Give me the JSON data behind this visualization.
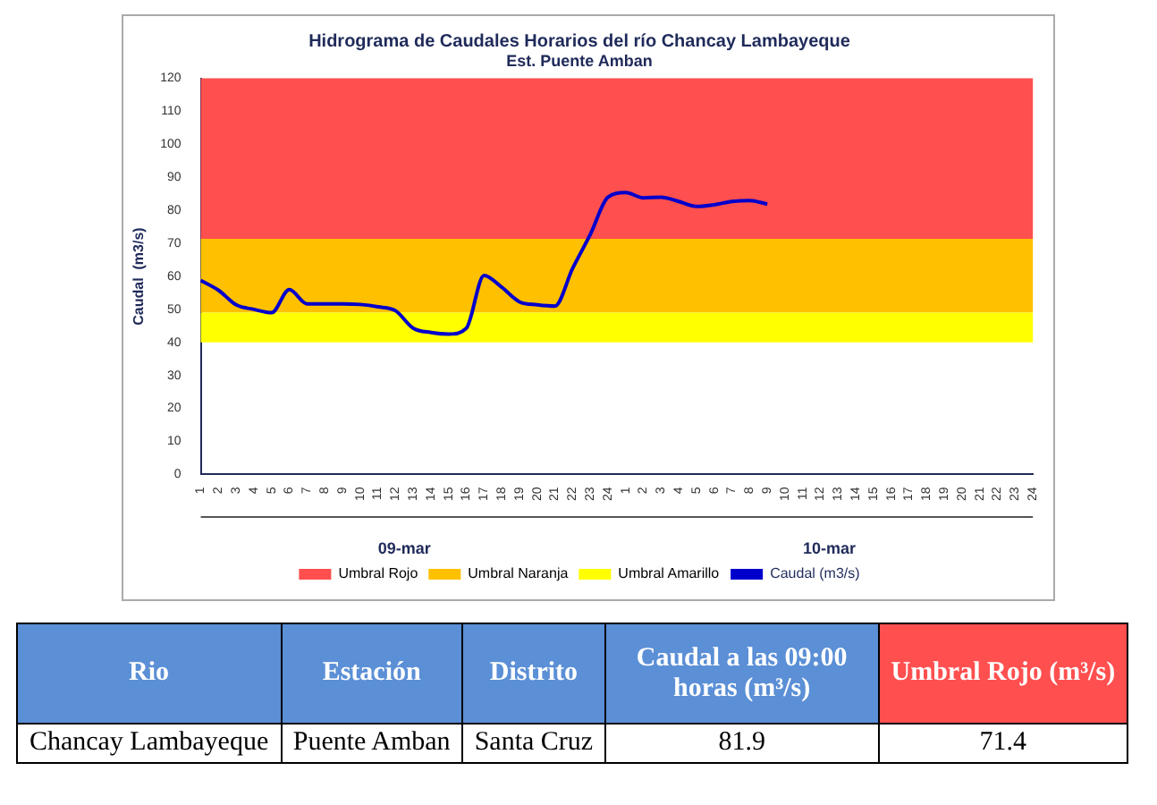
{
  "chart_data": [
    {
      "type": "line",
      "title": "Hidrograma de Caudales Horarios del río Chancay Lambayeque",
      "subtitle": "Est. Puente Amban",
      "ylabel": "Caudal  (m3/s)",
      "categories": [
        "1",
        "2",
        "3",
        "4",
        "5",
        "6",
        "7",
        "8",
        "9",
        "10",
        "11",
        "12",
        "13",
        "14",
        "15",
        "16",
        "17",
        "18",
        "19",
        "20",
        "21",
        "22",
        "23",
        "24",
        "1",
        "2",
        "3",
        "4",
        "5",
        "6",
        "7",
        "8",
        "9",
        "10",
        "11",
        "12",
        "13",
        "14",
        "15",
        "16",
        "17",
        "18",
        "19",
        "20",
        "21",
        "22",
        "23",
        "24"
      ],
      "series": [
        {
          "name": "Caudal (m3/s)",
          "color": "#0000cc",
          "values": [
            58.8,
            55.8,
            51.4,
            50,
            49,
            56,
            51.7,
            51.7,
            51.7,
            51.5,
            50.8,
            49.6,
            44.3,
            43,
            42.5,
            44.3,
            60.3,
            56.7,
            52.3,
            51.4,
            51,
            62.4,
            72.7,
            84,
            85.4,
            83.8,
            84,
            82.7,
            81.2,
            81.7,
            82.7,
            83,
            81.9,
            null,
            null,
            null,
            null,
            null,
            null,
            null,
            null,
            null,
            null,
            null,
            null,
            null,
            null,
            null
          ]
        }
      ],
      "bands": [
        {
          "axis": "y",
          "from": 71.4,
          "to": 120,
          "label": "Umbral Rojo",
          "color": "#ff4f4f"
        },
        {
          "axis": "y",
          "from": 49,
          "to": 71.4,
          "label": "Umbral Naranja",
          "color": "#ffc000"
        },
        {
          "axis": "y",
          "from": 40,
          "to": 49,
          "label": "Umbral Amarillo",
          "color": "#ffff00"
        }
      ],
      "annotations": [
        "09-mar",
        "10-mar"
      ],
      "ylim": [
        0,
        120
      ],
      "yticks": [
        0,
        10,
        20,
        30,
        40,
        50,
        60,
        70,
        80,
        90,
        100,
        110,
        120
      ],
      "grid": false,
      "legend": "bottom",
      "marker": "none",
      "line_style": "solid"
    },
    {
      "type": "other",
      "annotations": [
        "Rio",
        "Estación",
        "Distrito",
        "Caudal a las 09:00 horas (m³/s)",
        "Umbral Rojo (m³/s)",
        "Chancay Lambayeque",
        "Puente Amban",
        "Santa Cruz",
        "81.9",
        "71.4"
      ]
    }
  ]
}
